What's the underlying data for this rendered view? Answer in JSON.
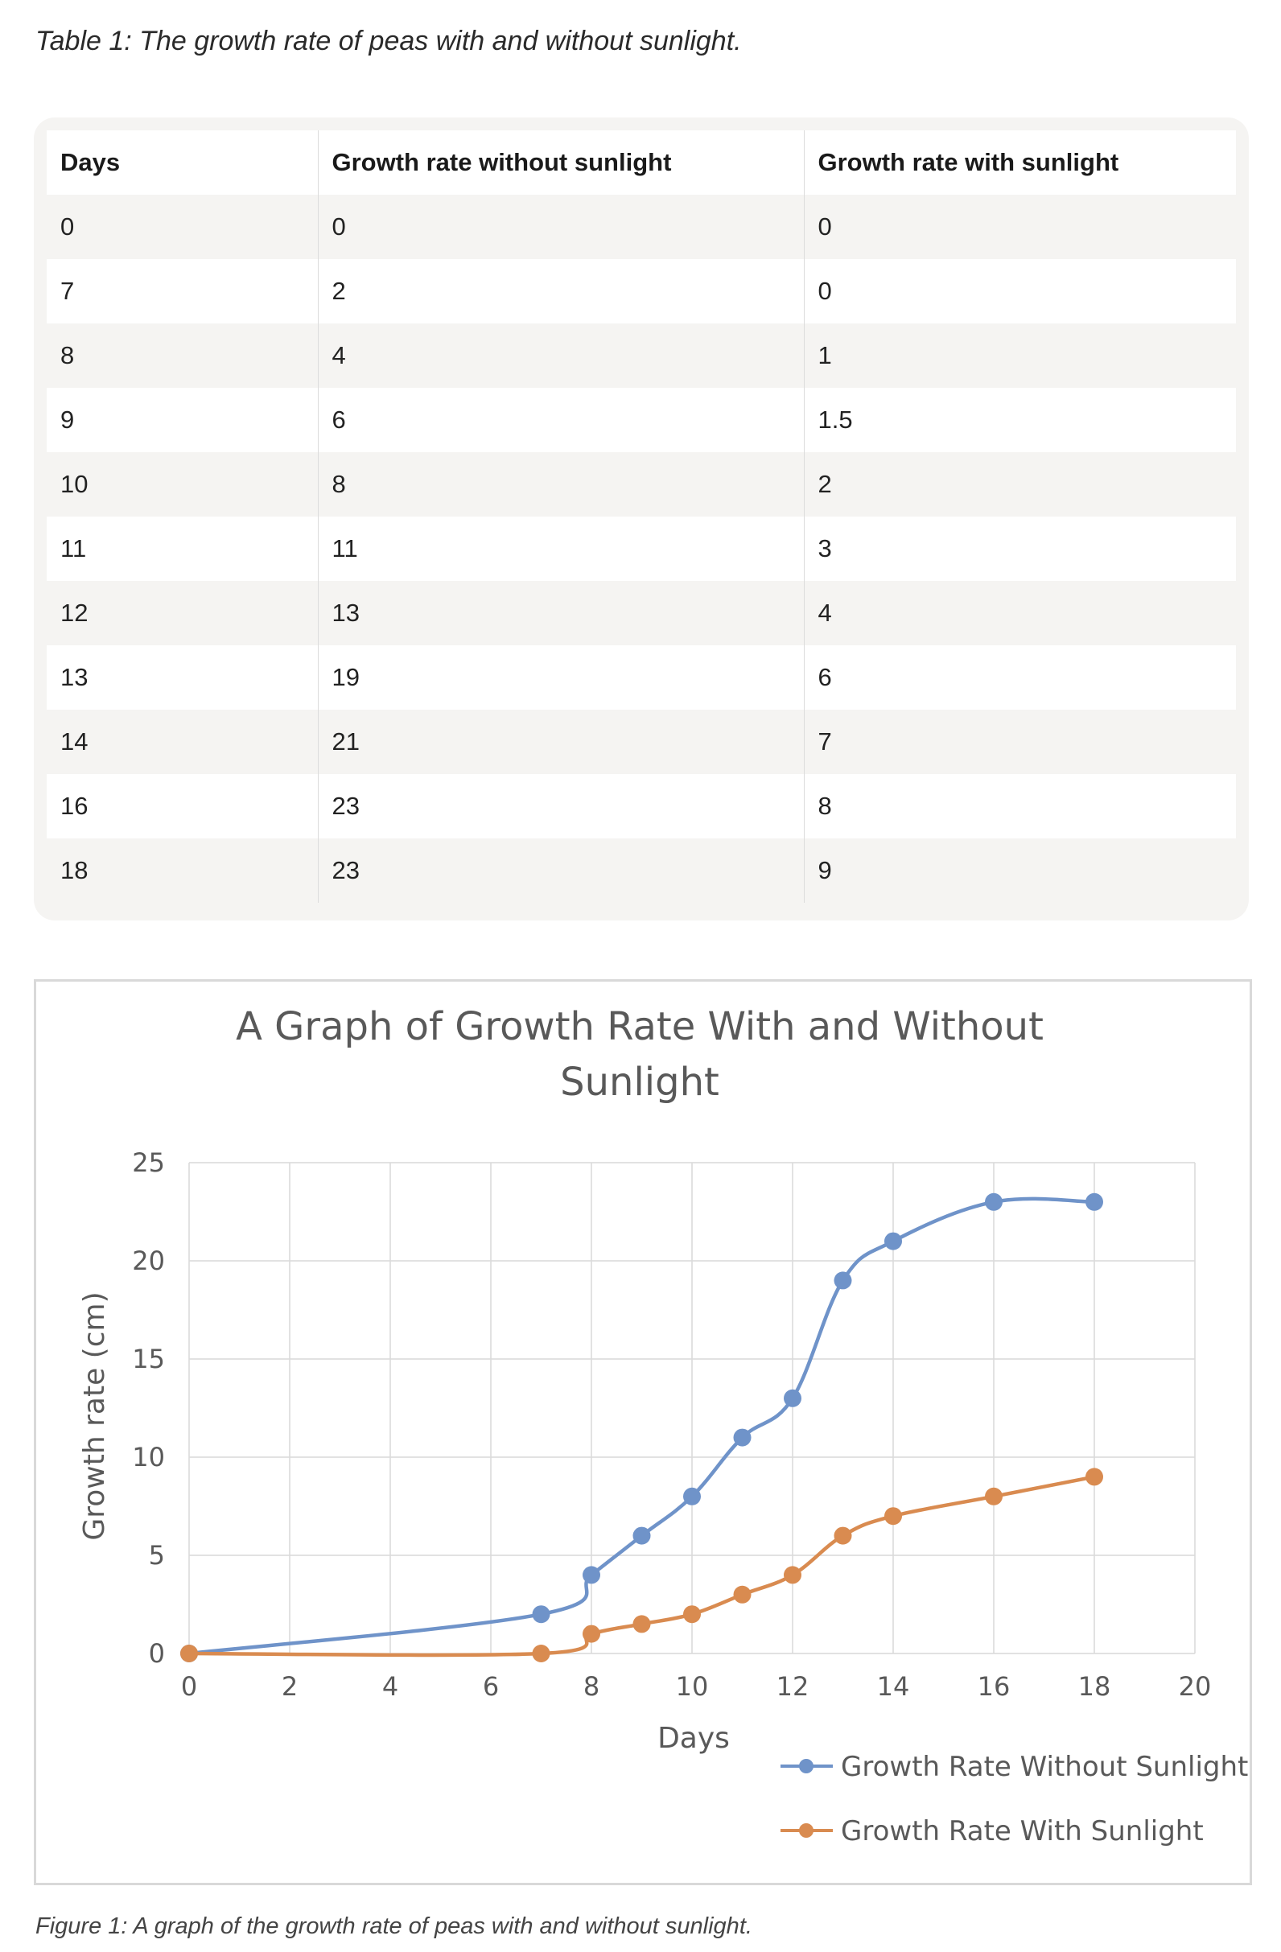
{
  "table_caption": "Table 1: The growth rate of peas with and without sunlight.",
  "table": {
    "headers": [
      "Days",
      "Growth rate without sunlight",
      "Growth rate with sunlight"
    ],
    "rows": [
      [
        "0",
        "0",
        "0"
      ],
      [
        "7",
        "2",
        "0"
      ],
      [
        "8",
        "4",
        "1"
      ],
      [
        "9",
        "6",
        "1.5"
      ],
      [
        "10",
        "8",
        "2"
      ],
      [
        "11",
        "11",
        "3"
      ],
      [
        "12",
        "13",
        "4"
      ],
      [
        "13",
        "19",
        "6"
      ],
      [
        "14",
        "21",
        "7"
      ],
      [
        "16",
        "23",
        "8"
      ],
      [
        "18",
        "23",
        "9"
      ]
    ]
  },
  "figure_caption": "Figure 1: A graph of the growth rate of peas with and without sunlight.",
  "colors": {
    "series_without": "#6f93c9",
    "series_with": "#d98b50",
    "grid": "#d9d9d9"
  },
  "chart_data": {
    "type": "line",
    "title_lines": [
      "A Graph of Growth Rate With and Without",
      "Sunlight"
    ],
    "xlabel": "Days",
    "ylabel": "Growth rate (cm)",
    "xlim": [
      0,
      20
    ],
    "ylim": [
      0,
      25
    ],
    "xticks": [
      0,
      2,
      4,
      6,
      8,
      10,
      12,
      14,
      16,
      18,
      20
    ],
    "yticks": [
      0,
      5,
      10,
      15,
      20,
      25
    ],
    "grid": true,
    "legend_position": "bottom-right",
    "series": [
      {
        "name": "Growth Rate Without Sunlight",
        "color": "#6f93c9",
        "points": [
          [
            0,
            0
          ],
          [
            7,
            2
          ],
          [
            8,
            4
          ],
          [
            9,
            6
          ],
          [
            10,
            8
          ],
          [
            11,
            11
          ],
          [
            12,
            13
          ],
          [
            13,
            19
          ],
          [
            14,
            21
          ],
          [
            16,
            23
          ],
          [
            18,
            23
          ]
        ]
      },
      {
        "name": "Growth Rate With Sunlight",
        "color": "#d98b50",
        "points": [
          [
            0,
            0
          ],
          [
            7,
            0
          ],
          [
            8,
            1
          ],
          [
            9,
            1.5
          ],
          [
            10,
            2
          ],
          [
            11,
            3
          ],
          [
            12,
            4
          ],
          [
            13,
            6
          ],
          [
            14,
            7
          ],
          [
            16,
            8
          ],
          [
            18,
            9
          ]
        ]
      }
    ]
  }
}
